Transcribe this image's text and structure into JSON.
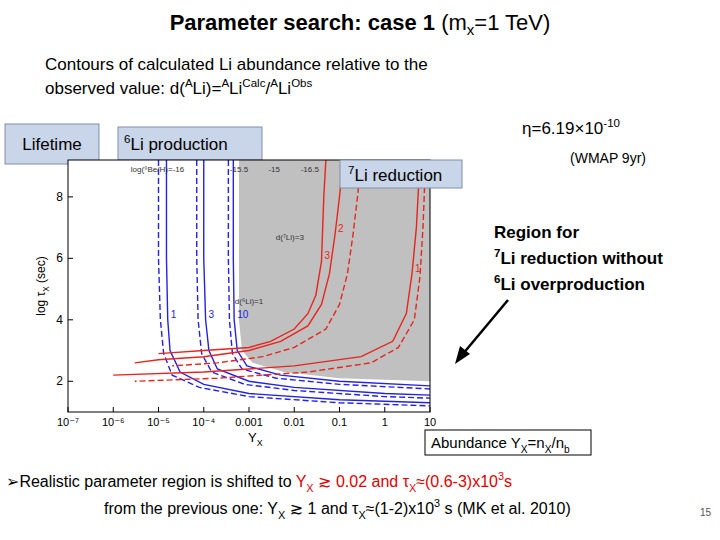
{
  "slide": {
    "title": "Parameter search: case 1",
    "title_note": [
      "(m",
      {
        "sub": "x"
      },
      "=1 TeV)"
    ],
    "subtitle": [
      [
        "Contours of calculated Li abundance relative to the"
      ],
      [
        "observed value:    d(",
        {
          "sup": "A"
        },
        "Li)=",
        {
          "sup": "A"
        },
        "Li",
        {
          "sup": "Calc"
        },
        "/",
        {
          "sup": "A"
        },
        "Li",
        {
          "sup": "Obs"
        }
      ]
    ],
    "labels": {
      "lifetime": [
        "Lifetime"
      ],
      "li6_production": [
        {
          "sup": "6"
        },
        "Li production"
      ],
      "li7_reduction": [
        {
          "sup": "7"
        },
        "Li reduction"
      ],
      "eta": [
        "η=6.19×10",
        {
          "sup": "-10"
        }
      ],
      "wmap": [
        "(WMAP 9yr)"
      ],
      "region": [
        [
          "Region for"
        ],
        [
          {
            "sup": "7"
          },
          "Li reduction without"
        ],
        [
          {
            "sup": "6"
          },
          "Li overproduction"
        ]
      ],
      "abundance": [
        "Abundance Y",
        {
          "sub": "X"
        },
        "=n",
        {
          "sub": "X"
        },
        "/n",
        {
          "sub": "b"
        }
      ]
    },
    "bullet": [
      [
        "➢Realistic parameter region is shifted to ",
        {
          "text": "Y",
          "color": "#e00000"
        },
        {
          "sub": "X",
          "color": "#e00000"
        },
        {
          "text": " ≳ 0.02 and τ",
          "color": "#e00000"
        },
        {
          "sub": "X",
          "color": "#e00000"
        },
        {
          "text": "≈(0.6-3)x10",
          "color": "#e00000"
        },
        {
          "sup": "3",
          "color": "#e00000"
        },
        {
          "text": "s",
          "color": "#e00000"
        }
      ],
      [
        "from the previous one: Y",
        {
          "sub": "X"
        },
        " ≳ 1 and τ",
        {
          "sub": "X"
        },
        "≈(1-2)x10",
        {
          "sup": "3"
        },
        " s (MK et al. 2010)"
      ]
    ],
    "page": "15"
  },
  "chart_data": {
    "type": "contour",
    "xlabel": [
      "Y",
      {
        "sub": "X"
      }
    ],
    "ylabel": [
      "log τ",
      {
        "sub": "X"
      },
      " (sec)"
    ],
    "log": "x",
    "xlim": [
      1e-07,
      10
    ],
    "ylim": [
      1,
      9.2
    ],
    "xticks": [
      {
        "value": 1e-07,
        "label": "10⁻⁷"
      },
      {
        "value": 1e-06,
        "label": "10⁻⁶"
      },
      {
        "value": 1e-05,
        "label": "10⁻⁵"
      },
      {
        "value": 0.0001,
        "label": "10⁻⁴"
      },
      0.001,
      0.01,
      0.1,
      1,
      10
    ],
    "yticks": [
      2,
      4,
      6,
      8
    ],
    "series": [
      {
        "type": "area",
        "color": "#c0c0c0",
        "x": [
          0.0006,
          0.0006,
          0.0007,
          0.0012,
          0.006,
          0.1,
          10,
          10
        ],
        "values": [
          9.2,
          4,
          3,
          2.6,
          2.3,
          2.1,
          2.0,
          9.2
        ]
      },
      {
        "name": "1",
        "color": "#2323e6",
        "line_style": "solid",
        "x": [
          1.5e-05,
          1.5e-05,
          1.6e-05,
          1.8e-05,
          3e-05,
          0.0001,
          0.001,
          0.1,
          10
        ],
        "values": [
          9.2,
          6,
          4,
          3,
          2.3,
          1.9,
          1.6,
          1.4,
          1.3
        ]
      },
      {
        "color": "#2323e6",
        "line_style": "dashed",
        "x": [
          1e-05,
          1e-05,
          1.1e-05,
          1.3e-05,
          2e-05,
          8e-05,
          0.001,
          0.1,
          10
        ],
        "values": [
          9.2,
          6,
          4,
          2.9,
          2.2,
          1.8,
          1.5,
          1.3,
          1.2
        ]
      },
      {
        "name": "3",
        "color": "#2323e6",
        "line_style": "solid",
        "x": [
          0.0001,
          0.0001,
          0.00011,
          0.00013,
          0.0002,
          0.001,
          0.01,
          1,
          10
        ],
        "values": [
          9.2,
          6,
          4,
          3,
          2.4,
          2.0,
          1.8,
          1.6,
          1.55
        ]
      },
      {
        "color": "#2323e6",
        "line_style": "dashed",
        "x": [
          7e-05,
          7e-05,
          7.5e-05,
          9e-05,
          0.00015,
          0.0008,
          0.01,
          1,
          10
        ],
        "values": [
          9.2,
          6,
          4,
          2.9,
          2.3,
          1.9,
          1.7,
          1.5,
          1.45
        ]
      },
      {
        "name": "10",
        "color": "#2323e6",
        "line_style": "solid",
        "x": [
          0.00045,
          0.00045,
          0.00047,
          0.00055,
          0.0009,
          0.005,
          0.1,
          10
        ],
        "values": [
          9.2,
          6,
          4,
          3,
          2.5,
          2.2,
          2.0,
          1.85
        ]
      },
      {
        "color": "#2323e6",
        "line_style": "dashed",
        "x": [
          0.00035,
          0.00035,
          0.00037,
          0.00043,
          0.0007,
          0.004,
          0.1,
          10
        ],
        "values": [
          9.2,
          6,
          4,
          2.9,
          2.4,
          2.1,
          1.9,
          1.75
        ]
      },
      {
        "name": "1",
        "color": "#e8241c",
        "line_style": "solid",
        "x": [
          6,
          5,
          4,
          3,
          1.5,
          0.3,
          0.01,
          0.0001,
          1e-06
        ],
        "values": [
          9.2,
          7,
          5.5,
          4.2,
          3.3,
          2.8,
          2.5,
          2.3,
          2.2
        ]
      },
      {
        "color": "#e8241c",
        "line_style": "dashed",
        "x": [
          8,
          7,
          6,
          4.5,
          2,
          0.5,
          0.02,
          0.0002,
          3e-06
        ],
        "values": [
          9.2,
          7,
          5.4,
          4,
          3.1,
          2.6,
          2.3,
          2.1,
          2.0
        ]
      },
      {
        "name": "2",
        "color": "#e8241c",
        "line_style": "solid",
        "x": [
          0.12,
          0.1,
          0.08,
          0.06,
          0.04,
          0.02,
          0.005,
          0.001,
          0.0001,
          1e-05,
          3e-06
        ],
        "values": [
          9.2,
          8,
          6.8,
          5.5,
          4.5,
          3.8,
          3.3,
          3.0,
          2.8,
          2.7,
          2.6
        ]
      },
      {
        "color": "#e8241c",
        "line_style": "dashed",
        "x": [
          0.3,
          0.25,
          0.2,
          0.15,
          0.1,
          0.05,
          0.01,
          0.002,
          0.0002,
          2e-05
        ],
        "values": [
          9.2,
          8,
          6.8,
          5.5,
          4.5,
          3.7,
          3.1,
          2.8,
          2.6,
          2.5
        ]
      },
      {
        "name": "3",
        "color": "#e8241c",
        "line_style": "solid",
        "x": [
          0.05,
          0.045,
          0.04,
          0.03,
          0.02,
          0.01,
          0.003,
          0.001,
          0.0001,
          1e-05
        ],
        "values": [
          9.2,
          8,
          5.9,
          4.8,
          4.2,
          3.7,
          3.3,
          3.1,
          3.0,
          2.9
        ]
      }
    ],
    "annotations": [
      {
        "text": "log(⁹Be/H)=-16",
        "x": 9.5e-06,
        "y": 8.8
      },
      {
        "text": "-15.5",
        "x": 0.0006,
        "y": 8.8
      },
      {
        "text": "-15",
        "x": 0.0036,
        "y": 8.8
      },
      {
        "text": "-16.5",
        "x": 0.022,
        "y": 8.8
      },
      {
        "text": "d(⁷Li)=3",
        "x": 0.008,
        "y": 6.6
      },
      {
        "text": "d(⁶Li)=1",
        "x": 0.001,
        "y": 4.5
      }
    ]
  }
}
